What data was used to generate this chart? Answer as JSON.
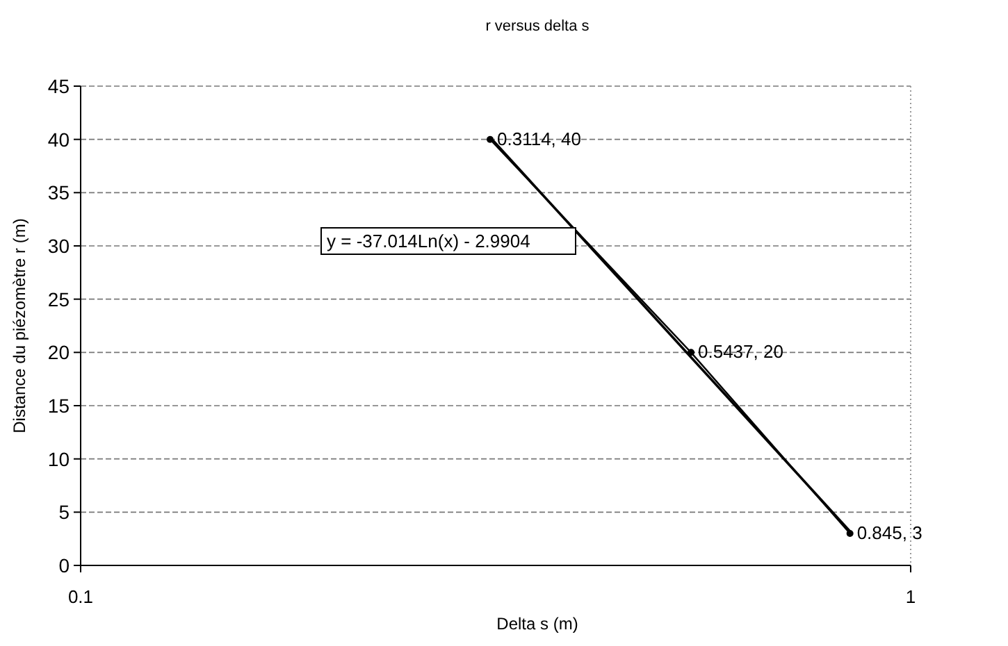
{
  "chart_data": {
    "type": "line",
    "title": "r versus delta s",
    "xlabel": "Delta s (m)",
    "ylabel": "Distance du piézomètre r (m)",
    "log": "x",
    "xlim": [
      0.1,
      1
    ],
    "xticks": [
      0.1,
      1
    ],
    "ylim": [
      0,
      45
    ],
    "yticks": [
      0,
      5,
      10,
      15,
      20,
      25,
      30,
      35,
      40,
      45
    ],
    "grid": "y",
    "series": [
      {
        "color": "#000000",
        "x": [
          0.3114,
          0.5437,
          0.845
        ],
        "values": [
          40,
          20,
          3
        ],
        "marker": "circle",
        "value_labels": [
          "0.3114, 40",
          "0.5437, 20",
          "0.845, 3"
        ]
      },
      {
        "type": "line",
        "color": "#000000",
        "x": [
          0.3114,
          0.845
        ],
        "values": [
          40.2,
          3.2
        ],
        "marker": "none"
      }
    ],
    "annotations": [
      "y = -37.014Ln(x) - 2.9904"
    ]
  }
}
